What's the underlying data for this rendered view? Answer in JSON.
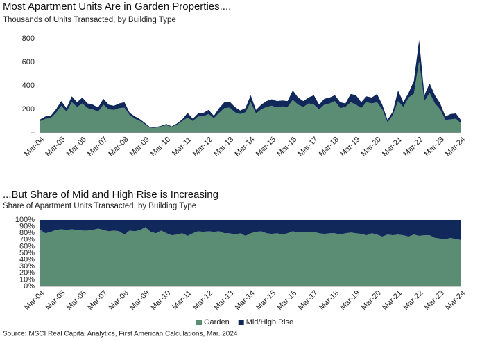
{
  "chart_data": [
    {
      "type": "stacked-area",
      "title": "Most Apartment Units Are in Garden Properties....",
      "subtitle": "Thousands of Units Transacted, by Building Type",
      "categories": [
        "Mar-04",
        null,
        null,
        null,
        "Mar-05",
        null,
        null,
        null,
        "Mar-06",
        null,
        null,
        null,
        "Mar-07",
        null,
        null,
        null,
        "Mar-08",
        null,
        null,
        null,
        "Mar-09",
        null,
        null,
        null,
        "Mar-10",
        null,
        null,
        null,
        "Mar-11",
        null,
        null,
        null,
        "Mar-12",
        null,
        null,
        null,
        "Mar-13",
        null,
        null,
        null,
        "Mar-14",
        null,
        null,
        null,
        "Mar-15",
        null,
        null,
        null,
        "Mar-16",
        null,
        null,
        null,
        "Mar-17",
        null,
        null,
        null,
        "Mar-18",
        null,
        null,
        null,
        "Mar-19",
        null,
        null,
        null,
        "Mar-20",
        null,
        null,
        null,
        "Mar-21",
        null,
        null,
        null,
        "Mar-22",
        null,
        null,
        null,
        "Mar-23",
        null,
        null,
        null,
        "Mar-24"
      ],
      "series": [
        {
          "name": "Garden",
          "color": "#5b8c74",
          "values": [
            100,
            120,
            125,
            170,
            230,
            180,
            260,
            220,
            250,
            210,
            200,
            180,
            240,
            200,
            195,
            210,
            215,
            150,
            120,
            100,
            70,
            40,
            45,
            55,
            65,
            50,
            70,
            100,
            130,
            100,
            140,
            140,
            160,
            125,
            170,
            210,
            215,
            175,
            160,
            175,
            260,
            165,
            200,
            220,
            230,
            215,
            225,
            220,
            280,
            240,
            220,
            250,
            240,
            200,
            240,
            250,
            270,
            210,
            220,
            260,
            240,
            210,
            260,
            250,
            260,
            200,
            90,
            150,
            270,
            220,
            300,
            330,
            610,
            270,
            340,
            250,
            200,
            110,
            115,
            120,
            80
          ]
        },
        {
          "name": "Mid/High Rise",
          "color": "#10285a",
          "values": [
            15,
            20,
            20,
            30,
            40,
            30,
            50,
            40,
            50,
            40,
            40,
            35,
            50,
            40,
            35,
            40,
            45,
            20,
            20,
            15,
            10,
            5,
            5,
            5,
            10,
            5,
            10,
            15,
            40,
            20,
            25,
            30,
            35,
            20,
            40,
            50,
            50,
            45,
            30,
            35,
            60,
            30,
            40,
            50,
            55,
            55,
            50,
            50,
            80,
            60,
            50,
            50,
            80,
            40,
            50,
            50,
            50,
            50,
            30,
            70,
            80,
            50,
            50,
            50,
            70,
            40,
            20,
            30,
            90,
            40,
            40,
            110,
            180,
            50,
            80,
            70,
            50,
            30,
            45,
            45,
            25
          ]
        }
      ],
      "ylim": [
        0,
        800
      ],
      "yticks": [
        {
          "value": 0,
          "label": "–"
        },
        200,
        400,
        600,
        800
      ],
      "grid": false,
      "legend": false
    },
    {
      "type": "stacked-area",
      "title": "...But Share of Mid and High Rise is Increasing",
      "subtitle": "Share of Apartment Units Transacted, by Building Type",
      "categories": [
        "Mar-04",
        null,
        null,
        null,
        "Mar-05",
        null,
        null,
        null,
        "Mar-06",
        null,
        null,
        null,
        "Mar-07",
        null,
        null,
        null,
        "Mar-08",
        null,
        null,
        null,
        "Mar-09",
        null,
        null,
        null,
        "Mar-10",
        null,
        null,
        null,
        "Mar-11",
        null,
        null,
        null,
        "Mar-12",
        null,
        null,
        null,
        "Mar-13",
        null,
        null,
        null,
        "Mar-14",
        null,
        null,
        null,
        "Mar-15",
        null,
        null,
        null,
        "Mar-16",
        null,
        null,
        null,
        "Mar-17",
        null,
        null,
        null,
        "Mar-18",
        null,
        null,
        null,
        "Mar-19",
        null,
        null,
        null,
        "Mar-20",
        null,
        null,
        null,
        "Mar-21",
        null,
        null,
        null,
        "Mar-22",
        null,
        null,
        null,
        "Mar-23",
        null,
        null,
        null,
        "Mar-24"
      ],
      "series": [
        {
          "name": "Garden",
          "color": "#5b8c74",
          "values": [
            85,
            80,
            82,
            85,
            86,
            85,
            86,
            85,
            84,
            84,
            85,
            87,
            85,
            83,
            84,
            83,
            78,
            84,
            83,
            85,
            89,
            82,
            80,
            84,
            80,
            77,
            78,
            80,
            76,
            80,
            83,
            82,
            83,
            82,
            83,
            80,
            80,
            78,
            80,
            76,
            80,
            82,
            83,
            80,
            79,
            80,
            78,
            80,
            83,
            81,
            82,
            81,
            82,
            80,
            79,
            80,
            80,
            78,
            80,
            81,
            80,
            79,
            77,
            80,
            78,
            75,
            78,
            77,
            78,
            77,
            75,
            78,
            76,
            77,
            77,
            73,
            72,
            71,
            73,
            71,
            70
          ]
        },
        {
          "name": "Mid/High Rise",
          "color": "#10285a",
          "values": [
            15,
            20,
            18,
            15,
            14,
            15,
            14,
            15,
            16,
            16,
            15,
            13,
            15,
            17,
            16,
            17,
            22,
            16,
            17,
            15,
            11,
            18,
            20,
            16,
            20,
            23,
            22,
            20,
            24,
            20,
            17,
            18,
            17,
            18,
            17,
            20,
            20,
            22,
            20,
            24,
            20,
            18,
            17,
            20,
            21,
            20,
            22,
            20,
            17,
            19,
            18,
            19,
            18,
            20,
            21,
            20,
            20,
            22,
            20,
            19,
            20,
            21,
            23,
            20,
            22,
            25,
            22,
            23,
            22,
            23,
            25,
            22,
            24,
            23,
            23,
            27,
            28,
            29,
            27,
            29,
            30
          ]
        }
      ],
      "ylim": [
        0,
        100
      ],
      "yticks": [
        {
          "value": 0,
          "label": "0%"
        },
        {
          "value": 10,
          "label": "10%"
        },
        {
          "value": 20,
          "label": "20%"
        },
        {
          "value": 30,
          "label": "30%"
        },
        {
          "value": 40,
          "label": "40%"
        },
        {
          "value": 50,
          "label": "50%"
        },
        {
          "value": 60,
          "label": "60%"
        },
        {
          "value": 70,
          "label": "70%"
        },
        {
          "value": 80,
          "label": "80%"
        },
        {
          "value": 90,
          "label": "90%"
        },
        {
          "value": 100,
          "label": "100%"
        }
      ],
      "grid": false,
      "legend": true
    }
  ],
  "source": "Source: MSCI Real Capital Analytics, First American Calculations, Mar. 2024"
}
